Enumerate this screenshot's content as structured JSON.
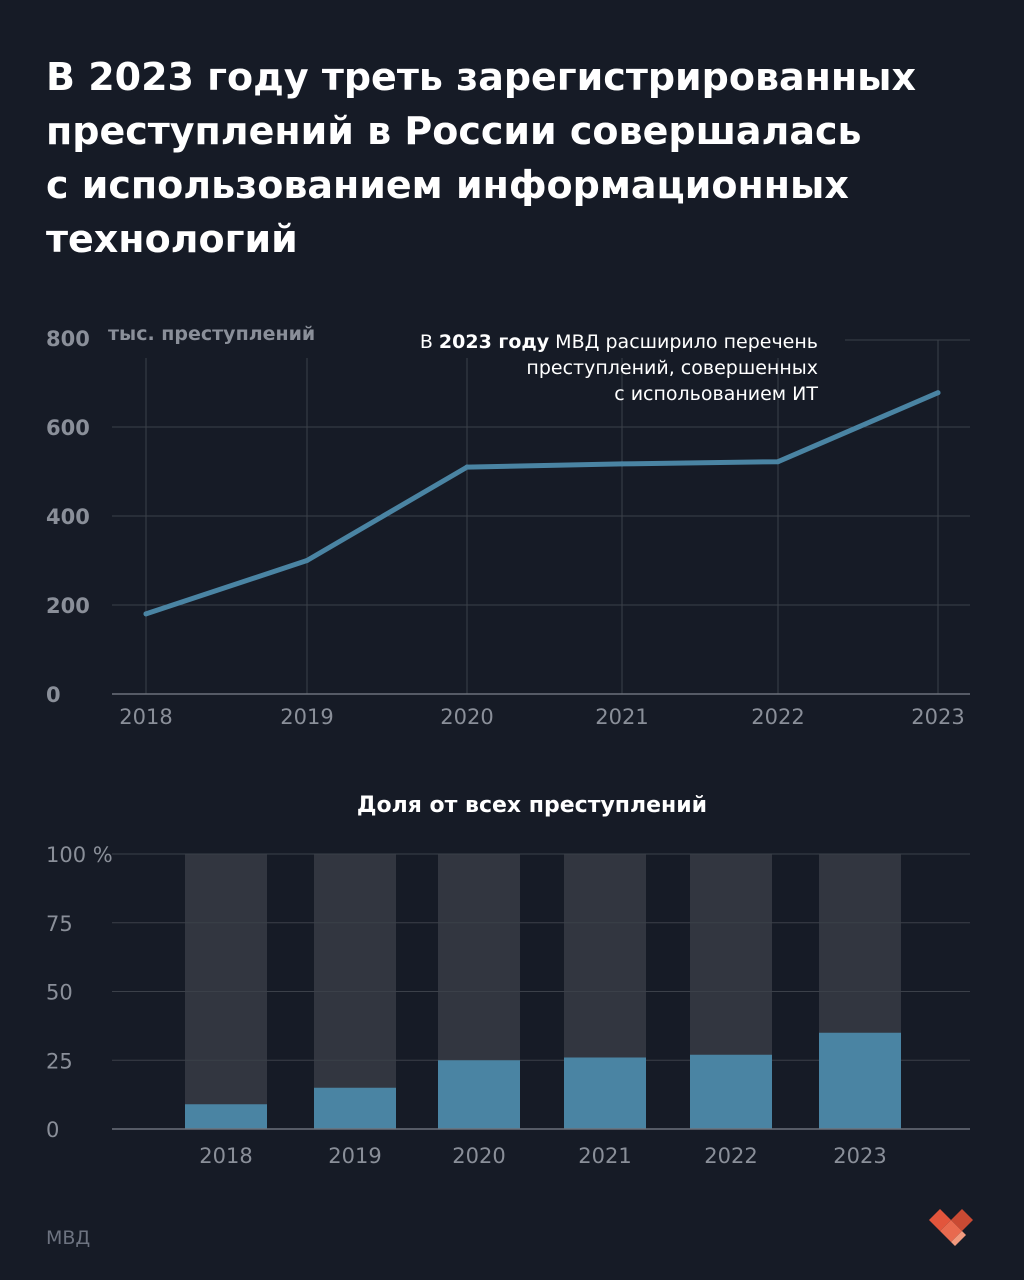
{
  "title_lines": [
    "В 2023 году треть зарегистрированных",
    "преступлений в России совершалась",
    "с использованием информационных",
    "технологий"
  ],
  "colors": {
    "background": "#161b26",
    "line": "#4a84a3",
    "bar_fill": "#4a84a3",
    "bar_rest": "#323640",
    "grid": "#3b4049",
    "tick_text": "#8a8f99",
    "logo": "#e2553c"
  },
  "source": "МВД",
  "logo_icon": "heart-logo-icon",
  "chart_data": [
    {
      "type": "line",
      "x": [
        "2018",
        "2019",
        "2020",
        "2021",
        "2022",
        "2023"
      ],
      "series": [
        {
          "values": [
            180,
            300,
            510,
            517,
            522,
            677
          ]
        }
      ],
      "ylim": [
        0,
        800
      ],
      "yticks": [
        "0",
        "200",
        "400",
        "600",
        "800"
      ],
      "ylabel": "тыс. преступлений",
      "grid": true,
      "annotation": {
        "lines": [
          [
            {
              "text": "В ",
              "bold": false
            },
            {
              "text": "2023 году",
              "bold": true
            },
            {
              "text": " МВД расширило перечень",
              "bold": false
            }
          ],
          [
            {
              "text": "преступлений, совершенных",
              "bold": false
            }
          ],
          [
            {
              "text": "с испольованием ИТ",
              "bold": false
            }
          ]
        ]
      }
    },
    {
      "type": "bar",
      "title": "Доля от всех преступлений",
      "categories": [
        "2018",
        "2019",
        "2020",
        "2021",
        "2022",
        "2023"
      ],
      "values": [
        9,
        15,
        25,
        26,
        27,
        35
      ],
      "ylim": [
        0,
        100
      ],
      "yticks": [
        "0",
        "25",
        "50",
        "75",
        "100 %"
      ],
      "grid": true
    }
  ]
}
